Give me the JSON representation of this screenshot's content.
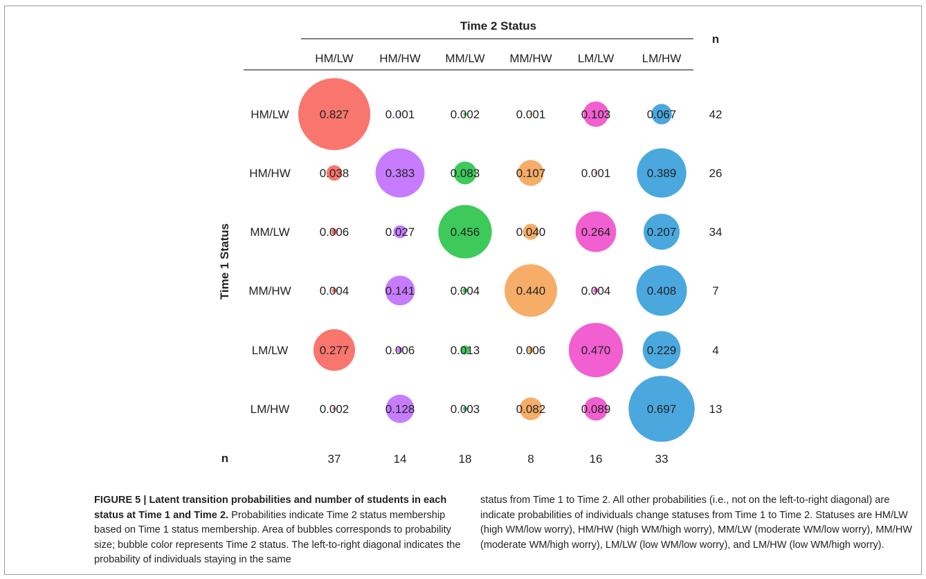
{
  "chart_data": {
    "type": "bubble-matrix",
    "column_header": "Time 2 Status",
    "row_header": "Time 1 Status",
    "n_label": "n",
    "categories": [
      "HM/LW",
      "HM/HW",
      "MM/LW",
      "MM/HW",
      "LM/LW",
      "LM/HW"
    ],
    "colors": [
      "#f8766d",
      "#c77cff",
      "#3ec95b",
      "#f5ad68",
      "#f15fd0",
      "#4aa8df"
    ],
    "values": [
      [
        0.827,
        0.001,
        0.002,
        0.001,
        0.103,
        0.067
      ],
      [
        0.038,
        0.383,
        0.083,
        0.107,
        0.001,
        0.389
      ],
      [
        0.006,
        0.027,
        0.456,
        0.04,
        0.264,
        0.207
      ],
      [
        0.004,
        0.141,
        0.004,
        0.44,
        0.004,
        0.408
      ],
      [
        0.277,
        0.006,
        0.013,
        0.006,
        0.47,
        0.229
      ],
      [
        0.002,
        0.128,
        0.003,
        0.082,
        0.089,
        0.697
      ]
    ],
    "labels": [
      [
        "0.827",
        "0.001",
        "0.002",
        "0.001",
        "0.103",
        "0.067"
      ],
      [
        "0.038",
        "0.383",
        "0.083",
        "0.107",
        "0.001",
        "0.389"
      ],
      [
        "0.006",
        "0.027",
        "0.456",
        "0.040",
        "0.264",
        "0.207"
      ],
      [
        "0.004",
        "0.141",
        "0.004",
        "0.440",
        "0.004",
        "0.408"
      ],
      [
        "0.277",
        "0.006",
        "0.013",
        "0.006",
        "0.470",
        "0.229"
      ],
      [
        "0.002",
        "0.128",
        "0.003",
        "0.082",
        "0.089",
        "0.697"
      ]
    ],
    "row_n": [
      "42",
      "26",
      "34",
      "7",
      "4",
      "13"
    ],
    "col_n": [
      "37",
      "14",
      "18",
      "8",
      "16",
      "33"
    ]
  },
  "caption": {
    "fig_label": "FIGURE 5 | Latent transition probabilities and number of students in each status at Time 1 and Time 2.",
    "left_text": " Probabilities indicate Time 2 status membership based on Time 1 status membership. Area of bubbles corresponds to probability size; bubble color represents Time 2 status. The left-to-right diagonal indicates the probability of individuals staying in the same",
    "right_text": "status from Time 1 to Time 2. All other probabilities (i.e., not on the left-to-right diagonal) are indicate probabilities of individuals change statuses from Time 1 to Time 2. Statuses are HM/LW (high WM/low worry), HM/HW (high WM/high worry), MM/LW (moderate WM/low worry), MM/HW (moderate WM/high worry), LM/LW (low WM/low worry), and LM/HW (low WM/high worry)."
  }
}
